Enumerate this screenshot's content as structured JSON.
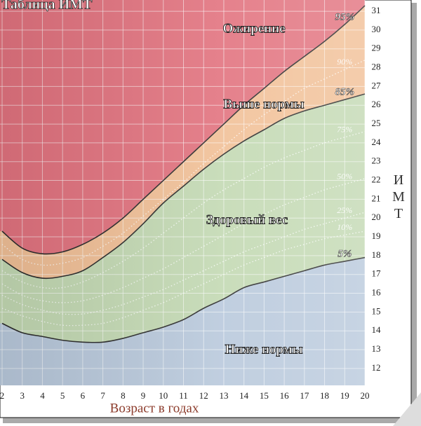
{
  "chart_data": {
    "type": "line",
    "title": "Таблица ИМТ",
    "x_label": "Возраст в годах",
    "y_label": "ИМТ",
    "x": [
      2,
      3,
      4,
      5,
      6,
      7,
      8,
      9,
      10,
      11,
      12,
      13,
      14,
      15,
      16,
      17,
      18,
      19,
      20
    ],
    "series": [
      {
        "name": "95%",
        "color": "#2b2b2b",
        "style": "solid",
        "values": [
          19.3,
          18.4,
          18.1,
          18.2,
          18.6,
          19.2,
          20.0,
          21.0,
          22.0,
          23.0,
          24.0,
          25.0,
          26.0,
          26.9,
          27.8,
          28.6,
          29.4,
          30.3,
          31.3
        ]
      },
      {
        "name": "90%",
        "color": "#ffffff",
        "style": "dotted",
        "values": [
          18.6,
          17.8,
          17.5,
          17.6,
          17.9,
          18.5,
          19.2,
          20.1,
          21.0,
          21.9,
          22.9,
          23.8,
          24.7,
          25.5,
          26.2,
          26.9,
          27.4,
          27.9,
          28.4
        ]
      },
      {
        "name": "85%",
        "color": "#2b2b2b",
        "style": "solid",
        "values": [
          17.8,
          17.1,
          16.8,
          16.9,
          17.2,
          17.9,
          18.7,
          19.7,
          20.8,
          21.7,
          22.6,
          23.4,
          24.1,
          24.7,
          25.3,
          25.7,
          26.0,
          26.3,
          26.6
        ]
      },
      {
        "name": "75%",
        "color": "#ffffff",
        "style": "dotted",
        "values": [
          17.2,
          16.6,
          16.3,
          16.3,
          16.6,
          17.1,
          17.7,
          18.4,
          19.2,
          20.0,
          20.8,
          21.5,
          22.1,
          22.7,
          23.2,
          23.6,
          24.0,
          24.3,
          24.6
        ]
      },
      {
        "name": "50%",
        "color": "#ffffff",
        "style": "dotted",
        "values": [
          16.5,
          15.9,
          15.6,
          15.5,
          15.6,
          15.9,
          16.3,
          16.8,
          17.3,
          17.9,
          18.5,
          19.1,
          19.7,
          20.2,
          20.7,
          21.1,
          21.5,
          21.8,
          22.1
        ]
      },
      {
        "name": "25%",
        "color": "#ffffff",
        "style": "dotted",
        "values": [
          15.9,
          15.4,
          15.1,
          14.9,
          14.9,
          15.1,
          15.4,
          15.8,
          16.2,
          16.7,
          17.2,
          17.7,
          18.2,
          18.6,
          19.0,
          19.4,
          19.7,
          20.0,
          20.3
        ]
      },
      {
        "name": "10%",
        "color": "#ffffff",
        "style": "dotted",
        "values": [
          15.2,
          14.8,
          14.5,
          14.3,
          14.3,
          14.4,
          14.7,
          15.1,
          15.5,
          16.0,
          16.5,
          17.0,
          17.5,
          17.9,
          18.3,
          18.6,
          18.9,
          19.1,
          19.3
        ]
      },
      {
        "name": "5%",
        "color": "#2b2b2b",
        "style": "solid",
        "values": [
          14.4,
          13.9,
          13.7,
          13.5,
          13.4,
          13.4,
          13.6,
          13.9,
          14.2,
          14.6,
          15.2,
          15.7,
          16.3,
          16.6,
          16.9,
          17.2,
          17.5,
          17.7,
          17.9
        ]
      }
    ],
    "bands": [
      {
        "label": "Ожирение",
        "color": "#e2737f"
      },
      {
        "label": "Выше нормы",
        "color": "#f1c097"
      },
      {
        "label": "Здоровый вес",
        "color": "#c3d9b3"
      },
      {
        "label": "Ниже нормы",
        "color": "#b9c9dc"
      }
    ],
    "xlim": [
      2,
      20
    ],
    "ylim": [
      11.1,
      31.6
    ],
    "xticks": [
      2,
      3,
      4,
      5,
      6,
      7,
      8,
      9,
      10,
      11,
      12,
      13,
      14,
      15,
      16,
      17,
      18,
      19,
      20
    ],
    "yticks": [
      12,
      13,
      14,
      15,
      16,
      17,
      18,
      19,
      20,
      21,
      22,
      23,
      24,
      25,
      26,
      27,
      28,
      29,
      30,
      31
    ],
    "grid": true
  }
}
